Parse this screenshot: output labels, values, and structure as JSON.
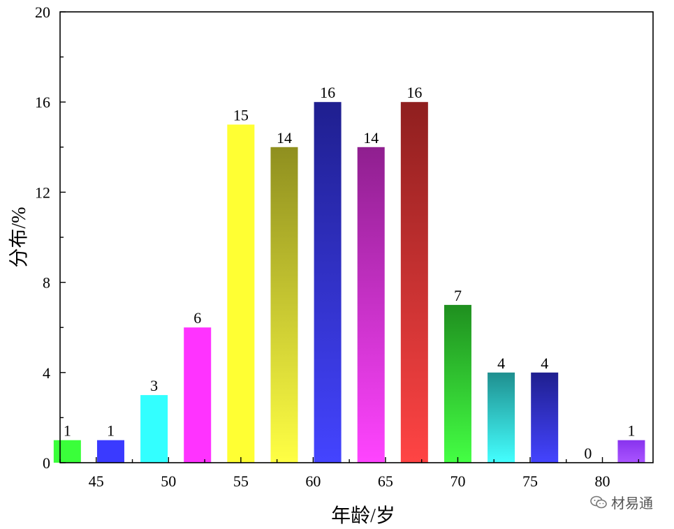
{
  "chart_data": {
    "type": "bar",
    "xlabel": "年龄/岁",
    "ylabel": "分布/%",
    "ylim": [
      0,
      20
    ],
    "xlim": [
      42.5,
      83.5
    ],
    "yticks": [
      0,
      4,
      8,
      12,
      16,
      20
    ],
    "xticks": [
      45,
      50,
      55,
      60,
      65,
      70,
      75,
      80
    ],
    "grid": false,
    "bars": [
      {
        "x": 43,
        "value": 1,
        "label": "1",
        "color": "#3aff3a"
      },
      {
        "x": 46,
        "value": 1,
        "label": "1",
        "color": "#3a3aff"
      },
      {
        "x": 49,
        "value": 3,
        "label": "3",
        "color": "#33ffff"
      },
      {
        "x": 52,
        "value": 6,
        "label": "6",
        "color": "#ff33ff"
      },
      {
        "x": 55,
        "value": 15,
        "label": "15",
        "color": "#ffff33"
      },
      {
        "x": 58,
        "value": 14,
        "label": "14",
        "color": "#8f8f1f",
        "color_bottom": "#ffff44"
      },
      {
        "x": 61,
        "value": 16,
        "label": "16",
        "color": "#1f1f8f",
        "color_bottom": "#4444ff"
      },
      {
        "x": 64,
        "value": 14,
        "label": "14",
        "color": "#8f1f8f",
        "color_bottom": "#ff44ff"
      },
      {
        "x": 67,
        "value": 16,
        "label": "16",
        "color": "#8f1f1f",
        "color_bottom": "#ff4444"
      },
      {
        "x": 70,
        "value": 7,
        "label": "7",
        "color": "#1f8f1f",
        "color_bottom": "#44ff44"
      },
      {
        "x": 73,
        "value": 4,
        "label": "4",
        "color": "#1f8f8f",
        "color_bottom": "#44ffff"
      },
      {
        "x": 76,
        "value": 4,
        "label": "4",
        "color": "#1f1f8f",
        "color_bottom": "#4444ff"
      },
      {
        "x": 79,
        "value": 0,
        "label": "0",
        "color": "#3aff3a"
      },
      {
        "x": 82,
        "value": 1,
        "label": "1",
        "color": "#8833ee",
        "color_bottom": "#aa55ff"
      }
    ]
  },
  "watermark": {
    "text": "材易通",
    "icon": "wechat-icon"
  }
}
